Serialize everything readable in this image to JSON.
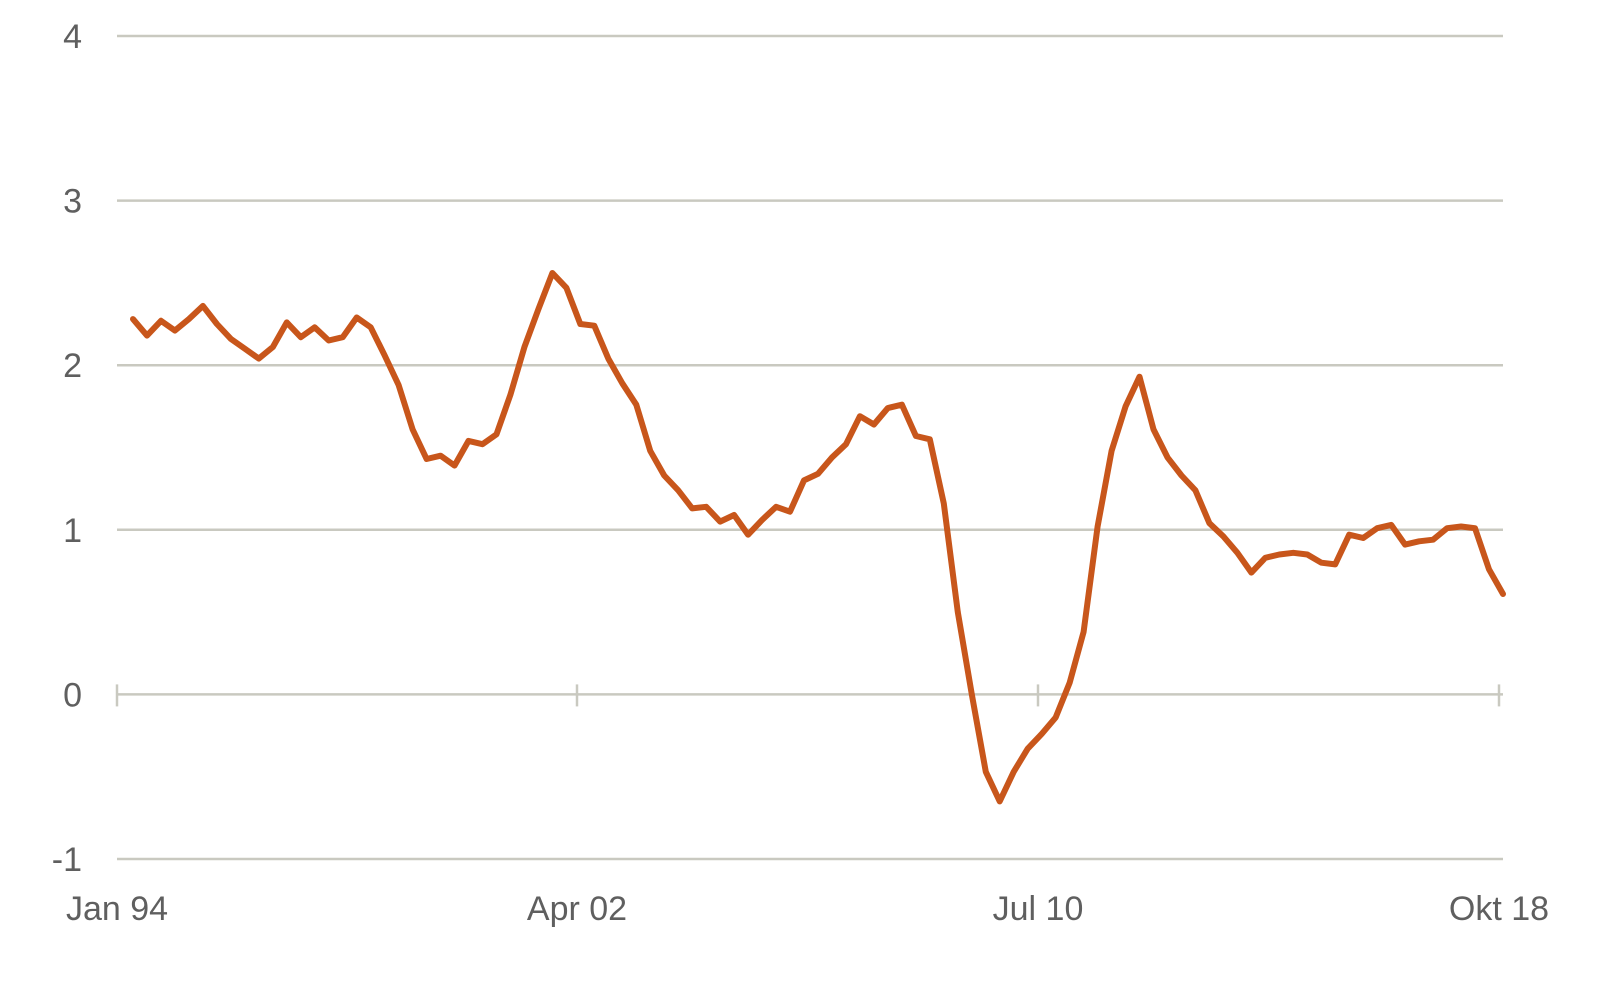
{
  "chart_data": {
    "type": "line",
    "title": "",
    "xlabel": "",
    "ylabel": "",
    "ylim": [
      -1,
      4
    ],
    "yticks": [
      "-1",
      "0",
      "1",
      "2",
      "3",
      "4"
    ],
    "yticks_values": [
      -1,
      0,
      1,
      2,
      3,
      4
    ],
    "xticks": [
      "Jan 94",
      "Apr 02",
      "Jul 10",
      "Okt 18"
    ],
    "xticks_index": [
      0,
      33,
      66,
      99
    ],
    "grid": true,
    "legend": "none",
    "line_color": "#c8561b",
    "grid_color": "#c9c9c0",
    "series": [
      {
        "values": [
          2.28,
          2.18,
          2.27,
          2.21,
          2.28,
          2.36,
          2.25,
          2.16,
          2.1,
          2.04,
          2.11,
          2.26,
          2.17,
          2.23,
          2.15,
          2.17,
          2.29,
          2.23,
          2.06,
          1.88,
          1.61,
          1.43,
          1.45,
          1.39,
          1.54,
          1.52,
          1.58,
          1.82,
          2.11,
          2.34,
          2.56,
          2.47,
          2.25,
          2.24,
          2.04,
          1.89,
          1.76,
          1.48,
          1.33,
          1.24,
          1.13,
          1.14,
          1.05,
          1.09,
          0.97,
          1.06,
          1.14,
          1.11,
          1.3,
          1.34,
          1.44,
          1.52,
          1.69,
          1.64,
          1.74,
          1.76,
          1.57,
          1.55,
          1.16,
          0.5,
          0.0,
          -0.47,
          -0.65,
          -0.47,
          -0.33,
          -0.24,
          -0.14,
          0.07,
          0.38,
          1.02,
          1.48,
          1.75,
          1.93,
          1.61,
          1.44,
          1.33,
          1.24,
          1.04,
          0.96,
          0.86,
          0.74,
          0.83,
          0.85,
          0.86,
          0.85,
          0.8,
          0.79,
          0.97,
          0.95,
          1.01,
          1.03,
          0.91,
          0.93,
          0.94,
          1.01,
          1.02,
          1.01,
          0.76,
          0.61
        ]
      }
    ]
  }
}
